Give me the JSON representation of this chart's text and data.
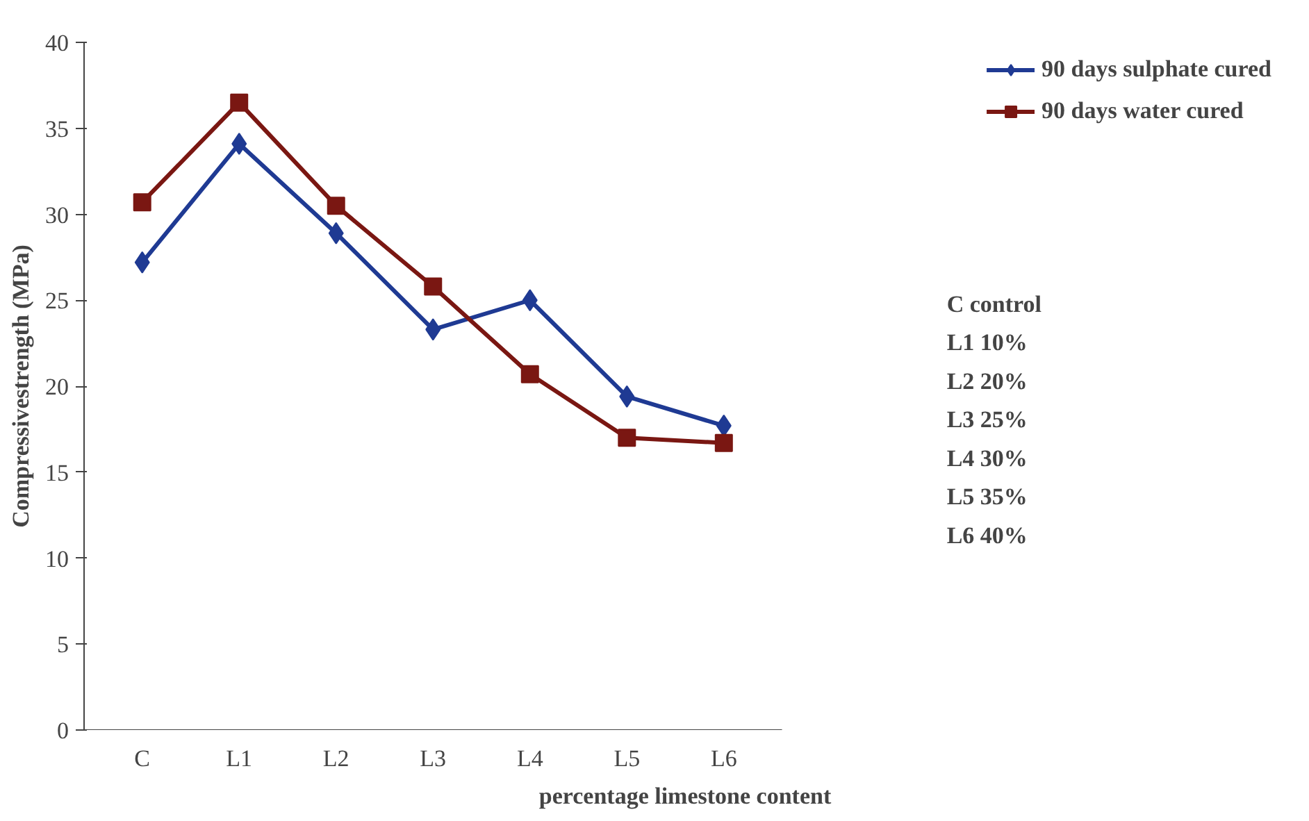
{
  "chart_data": {
    "type": "line",
    "xlabel": "percentage limestone content",
    "ylabel": "Compressivestrength (MPa)",
    "categories": [
      "C",
      "L1",
      "L2",
      "L3",
      "L4",
      "L5",
      "L6"
    ],
    "series": [
      {
        "name": "90 days sulphate cured",
        "color": "#1f3a93",
        "marker": "diamond",
        "values": [
          27.2,
          34.1,
          28.9,
          23.3,
          25,
          19.4,
          17.7
        ]
      },
      {
        "name": "90 days water cured",
        "color": "#7a1712",
        "marker": "square",
        "values": [
          30.7,
          36.5,
          30.5,
          25.8,
          20.7,
          17,
          16.7
        ]
      }
    ],
    "ylim": [
      0,
      40
    ],
    "yticks": [
      0,
      5,
      10,
      15,
      20,
      25,
      30,
      35,
      40
    ],
    "grid": false,
    "legend": "top right",
    "annotations": [
      "C   control",
      "L1  10%",
      "L2  20%",
      "L3  25%",
      "L4  30%",
      "L5  35%",
      "L6  40%"
    ]
  }
}
